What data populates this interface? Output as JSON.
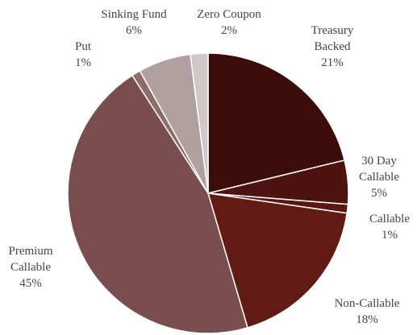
{
  "chart_data": {
    "type": "pie",
    "categories": [
      "Treasury Backed",
      "30 Day Callable",
      "Callable",
      "Non-Callable",
      "Premium Callable",
      "Put",
      "Sinking Fund",
      "Zero Coupon"
    ],
    "values": [
      21,
      5,
      1,
      18,
      45,
      1,
      6,
      2
    ],
    "value_labels": [
      "21%",
      "5%",
      "1%",
      "18%",
      "45%",
      "1%",
      "6%",
      "2%"
    ],
    "colors": [
      "#3b0c0a",
      "#4e1210",
      "#5a1613",
      "#621a15",
      "#7a4e4e",
      "#8e6c6c",
      "#b0a0a0",
      "#d0c7c7"
    ]
  }
}
